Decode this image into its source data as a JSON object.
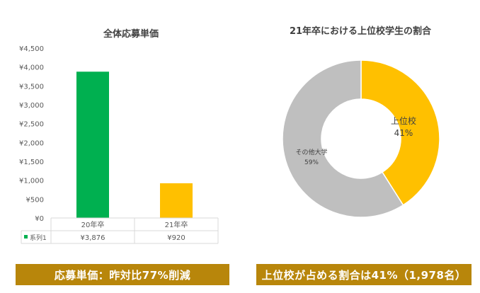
{
  "chart_data": [
    {
      "type": "bar",
      "title": "全体応募単価",
      "categories": [
        "20年卒",
        "21年卒"
      ],
      "series": [
        {
          "name": "系列1",
          "values": [
            3876,
            920
          ]
        }
      ],
      "value_labels": [
        "¥3,876",
        "¥920"
      ],
      "bar_colors": [
        "#00b050",
        "#ffc000"
      ],
      "ylim": [
        0,
        4500
      ],
      "yticks": [
        "¥0",
        "¥500",
        "¥1,000",
        "¥1,500",
        "¥2,000",
        "¥2,500",
        "¥3,000",
        "¥3,500",
        "¥4,000",
        "¥4,500"
      ],
      "grid": false,
      "legend": "data-table"
    },
    {
      "type": "pie",
      "title": "21年卒における上位校学生の割合",
      "slices": [
        {
          "label": "上位校",
          "value": 41,
          "display": "41%",
          "color": "#ffc000"
        },
        {
          "label": "その他大学",
          "value": 59,
          "display": "59%",
          "color": "#bfbfbf"
        }
      ]
    }
  ],
  "banners": {
    "left": "応募単価：昨対比77%削減",
    "right": "上位校が占める割合は41%（1,978名）",
    "color": "#b8860b"
  }
}
